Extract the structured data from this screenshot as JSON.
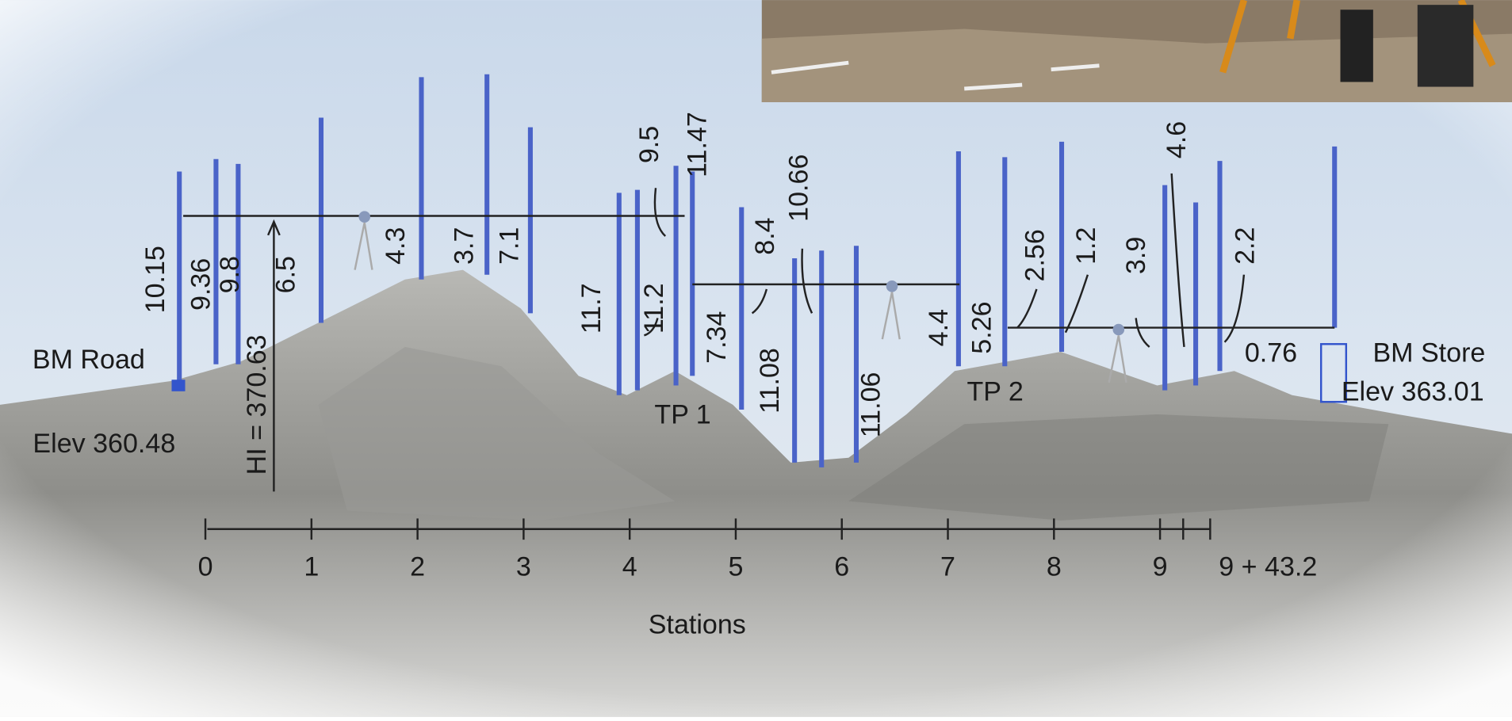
{
  "benchmarks": [
    {
      "label": "BM Road",
      "elevation": "Elev 360.48"
    },
    {
      "label": "BM Store",
      "elevation": "Elev 363.01"
    }
  ],
  "height_of_instrument": "HI = 370.63",
  "rod_readings": [
    "10.15",
    "9.36",
    "9.8",
    "6.5",
    "4.3",
    "3.7",
    "7.1",
    "11.7",
    "11.2",
    "9.5",
    "11.47",
    "7.34",
    "8.4",
    "10.66",
    "11.08",
    "11.06",
    "4.4",
    "5.26",
    "2.56",
    "1.2",
    "3.9",
    "4.6",
    "2.2",
    "0.76"
  ],
  "turning_points": [
    "TP 1",
    "TP 2"
  ],
  "stations": {
    "labels": [
      "0",
      "1",
      "2",
      "3",
      "4",
      "5",
      "6",
      "7",
      "8",
      "9",
      "9 + 43.2"
    ],
    "title": "Stations"
  }
}
